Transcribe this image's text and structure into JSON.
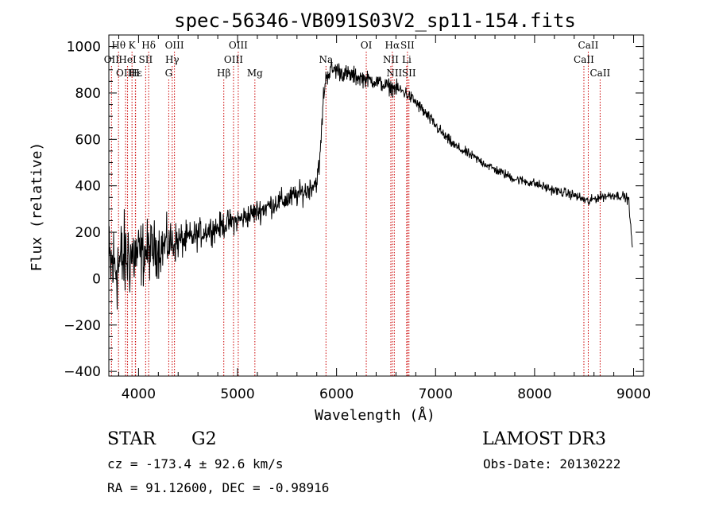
{
  "chart_data": {
    "type": "line",
    "title": "spec-56346-VB091S03V2_sp11-154.fits",
    "xlabel": "Wavelength (Å)",
    "ylabel": "Flux (relative)",
    "xlim": [
      3700,
      9100
    ],
    "ylim": [
      -420,
      1050
    ],
    "x_ticks": [
      4000,
      5000,
      6000,
      7000,
      8000,
      9000
    ],
    "y_ticks": [
      -400,
      -200,
      0,
      200,
      400,
      600,
      800,
      1000
    ],
    "x_minor_step": 200,
    "y_minor_step": 50,
    "line_color": "#000000",
    "marker_color": "#cc0000",
    "series": [
      {
        "name": "flux",
        "x": [
          3700,
          3800,
          3900,
          4000,
          4100,
          4200,
          4300,
          4400,
          4500,
          4600,
          4700,
          4800,
          4900,
          5000,
          5100,
          5200,
          5300,
          5400,
          5500,
          5600,
          5700,
          5750,
          5800,
          5830,
          5850,
          5870,
          5900,
          5950,
          6000,
          6100,
          6200,
          6300,
          6400,
          6500,
          6600,
          6700,
          6800,
          6900,
          7000,
          7100,
          7200,
          7400,
          7600,
          7800,
          8000,
          8200,
          8400,
          8500,
          8550,
          8600,
          8700,
          8800,
          8900,
          8950,
          8990
        ],
        "y": [
          50,
          60,
          100,
          100,
          120,
          130,
          150,
          160,
          170,
          190,
          210,
          220,
          240,
          250,
          270,
          290,
          310,
          330,
          340,
          360,
          380,
          400,
          420,
          500,
          650,
          800,
          880,
          900,
          900,
          880,
          870,
          860,
          850,
          830,
          820,
          800,
          760,
          710,
          660,
          610,
          570,
          520,
          470,
          430,
          410,
          380,
          360,
          340,
          330,
          345,
          355,
          360,
          355,
          340,
          120
        ],
        "noise": [
          180,
          180,
          160,
          130,
          110,
          100,
          90,
          70,
          60,
          55,
          50,
          50,
          48,
          45,
          45,
          45,
          45,
          45,
          45,
          45,
          45,
          40,
          40,
          40,
          40,
          40,
          40,
          40,
          35,
          35,
          35,
          30,
          30,
          30,
          30,
          25,
          25,
          25,
          22,
          22,
          20,
          18,
          18,
          18,
          18,
          18,
          18,
          18,
          18,
          18,
          18,
          18,
          18,
          18,
          10
        ]
      }
    ],
    "lines": [
      {
        "label": "Hθ",
        "wave": 3798,
        "row": 0
      },
      {
        "label": "K",
        "wave": 3934,
        "row": 0
      },
      {
        "label": "Hδ",
        "wave": 4102,
        "row": 0
      },
      {
        "label": "OIII",
        "wave": 4363,
        "row": 0
      },
      {
        "label": "OIII",
        "wave": 5007,
        "row": 0
      },
      {
        "label": "OI",
        "wave": 6300,
        "row": 0
      },
      {
        "label": "Hα",
        "wave": 6563,
        "row": 0
      },
      {
        "label": "SII",
        "wave": 6716,
        "row": 0
      },
      {
        "label": "CaII",
        "wave": 8542,
        "row": 0
      },
      {
        "label": "OII",
        "wave": 3727,
        "row": 1
      },
      {
        "label": "HeI",
        "wave": 3889,
        "row": 1
      },
      {
        "label": "SII",
        "wave": 4072,
        "row": 1
      },
      {
        "label": "Hγ",
        "wave": 4340,
        "row": 1
      },
      {
        "label": "OIII",
        "wave": 4959,
        "row": 1
      },
      {
        "label": "Na",
        "wave": 5893,
        "row": 1
      },
      {
        "label": "NII",
        "wave": 6548,
        "row": 1
      },
      {
        "label": "Li",
        "wave": 6708,
        "row": 1
      },
      {
        "label": "CaII",
        "wave": 8498,
        "row": 1
      },
      {
        "label": "OIII",
        "wave": 3869,
        "row": 2
      },
      {
        "label": "Hε",
        "wave": 3970,
        "row": 2
      },
      {
        "label": "H",
        "wave": 3968,
        "row": 2
      },
      {
        "label": "G",
        "wave": 4305,
        "row": 2
      },
      {
        "label": "Hβ",
        "wave": 4861,
        "row": 2
      },
      {
        "label": "Mg",
        "wave": 5175,
        "row": 2
      },
      {
        "label": "NII",
        "wave": 6583,
        "row": 2
      },
      {
        "label": "SII",
        "wave": 6731,
        "row": 2
      },
      {
        "label": "CaII",
        "wave": 8662,
        "row": 2
      }
    ]
  },
  "footer": {
    "class_label": "STAR",
    "subclass": "G2",
    "survey": "LAMOST DR3",
    "redshift": "cz = -173.4 ± 92.6 km/s",
    "obs_date": "Obs-Date: 20130222",
    "coords": "RA =  91.12600, DEC =  -0.98916"
  }
}
